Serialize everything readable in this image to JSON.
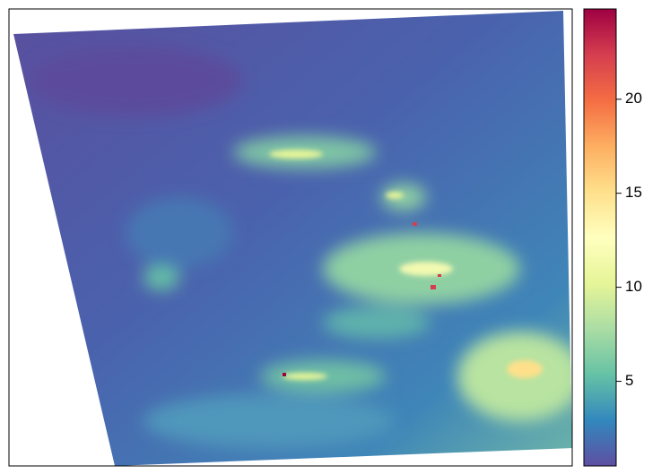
{
  "chart_data": {
    "type": "raster",
    "colorbar": {
      "colors": [
        "#5E4FA2",
        "#3288BD",
        "#66C2A5",
        "#ABDDA4",
        "#E6F598",
        "#FFFFBF",
        "#FEE08B",
        "#FDAE61",
        "#F46D43",
        "#D53E4F",
        "#9E0142"
      ],
      "zlim": [
        0.5,
        24.8
      ],
      "ticks": [
        5,
        10,
        15,
        20
      ]
    }
  }
}
